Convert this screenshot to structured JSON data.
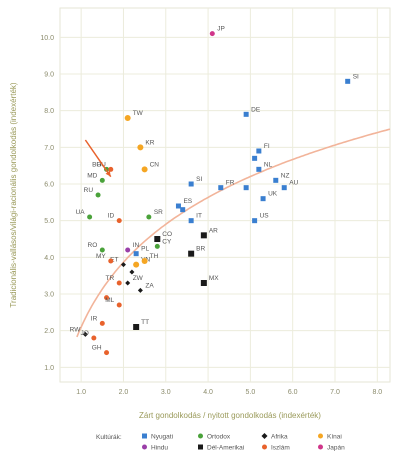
{
  "chart_data": {
    "type": "scatter",
    "xlabel": "Zárt gondolkodás / nyitott gondolkodás (indexérték)",
    "ylabel": "Tradicionális-vallásos/világi-racionális gondolkodás (indexérték)",
    "xlim": [
      0.5,
      8.3
    ],
    "ylim": [
      0.6,
      10.8
    ],
    "xticks": [
      "1.0",
      "2.0",
      "3.0",
      "4.0",
      "5.0",
      "6.0",
      "7.0",
      "8.0"
    ],
    "yticks": [
      "1.0",
      "2.0",
      "3.0",
      "4.0",
      "5.0",
      "6.0",
      "7.0",
      "8.0",
      "9.0",
      "10.0"
    ],
    "grid": true,
    "legend_position": "bottom",
    "legend_title": "Kultúrák:",
    "trendline": {
      "type": "logarithmic",
      "color": "#f2b49a"
    },
    "arrow": {
      "from": [
        1.1,
        7.2
      ],
      "to": [
        1.7,
        6.2
      ],
      "color": "#e8622c"
    },
    "series": [
      {
        "name": "Nyugati",
        "color": "#3a7fd0",
        "shape": "square",
        "size": 5,
        "points": [
          {
            "x": 7.3,
            "y": 8.8,
            "label": "SI"
          },
          {
            "x": 4.9,
            "y": 7.9,
            "label": "DE"
          },
          {
            "x": 5.2,
            "y": 6.9,
            "label": "FI"
          },
          {
            "x": 5.1,
            "y": 6.7,
            "label": ""
          },
          {
            "x": 5.2,
            "y": 6.4,
            "label": "NL"
          },
          {
            "x": 3.6,
            "y": 6.0,
            "label": "SI"
          },
          {
            "x": 4.3,
            "y": 5.9,
            "label": "FR"
          },
          {
            "x": 5.6,
            "y": 6.1,
            "label": "NZ"
          },
          {
            "x": 4.9,
            "y": 5.9,
            "label": ""
          },
          {
            "x": 5.3,
            "y": 5.6,
            "label": "UK"
          },
          {
            "x": 5.8,
            "y": 5.9,
            "label": "AU"
          },
          {
            "x": 3.3,
            "y": 5.4,
            "label": "ES"
          },
          {
            "x": 3.4,
            "y": 5.3,
            "label": ""
          },
          {
            "x": 3.6,
            "y": 5.0,
            "label": "IT"
          },
          {
            "x": 5.1,
            "y": 5.0,
            "label": "US"
          },
          {
            "x": 2.3,
            "y": 4.1,
            "label": "PL"
          }
        ]
      },
      {
        "name": "Hindu",
        "color": "#9a3fa8",
        "shape": "circle",
        "size": 5,
        "points": [
          {
            "x": 2.1,
            "y": 4.2,
            "label": "IN"
          }
        ]
      },
      {
        "name": "Ortodox",
        "color": "#4aa23a",
        "shape": "circle",
        "size": 5,
        "points": [
          {
            "x": 1.6,
            "y": 6.4,
            "label": "BG"
          },
          {
            "x": 1.5,
            "y": 6.1,
            "label": "MD"
          },
          {
            "x": 1.4,
            "y": 5.7,
            "label": "RU"
          },
          {
            "x": 1.2,
            "y": 5.1,
            "label": "UA"
          },
          {
            "x": 2.6,
            "y": 5.1,
            "label": "SR"
          },
          {
            "x": 1.5,
            "y": 4.2,
            "label": "RO"
          },
          {
            "x": 2.8,
            "y": 4.3,
            "label": "CY"
          }
        ]
      },
      {
        "name": "Dél-Amerikai",
        "color": "#1a1a1a",
        "shape": "square",
        "size": 6,
        "points": [
          {
            "x": 2.8,
            "y": 4.5,
            "label": "CO"
          },
          {
            "x": 3.9,
            "y": 4.6,
            "label": "AR"
          },
          {
            "x": 3.6,
            "y": 4.1,
            "label": "BR"
          },
          {
            "x": 3.9,
            "y": 3.3,
            "label": "MX"
          },
          {
            "x": 2.3,
            "y": 2.1,
            "label": "TT"
          }
        ]
      },
      {
        "name": "Afrika",
        "color": "#1a1a1a",
        "shape": "diamond",
        "size": 4,
        "points": [
          {
            "x": 2.0,
            "y": 3.8,
            "label": "ET"
          },
          {
            "x": 2.2,
            "y": 3.6,
            "label": ""
          },
          {
            "x": 2.1,
            "y": 3.3,
            "label": "ZW"
          },
          {
            "x": 2.4,
            "y": 3.1,
            "label": "ZA"
          },
          {
            "x": 1.1,
            "y": 1.9,
            "label": "RW"
          }
        ]
      },
      {
        "name": "Iszlám",
        "color": "#e8622c",
        "shape": "circle",
        "size": 5,
        "points": [
          {
            "x": 1.7,
            "y": 6.4,
            "label": "HU"
          },
          {
            "x": 1.9,
            "y": 5.0,
            "label": "ID"
          },
          {
            "x": 1.7,
            "y": 3.9,
            "label": "MY"
          },
          {
            "x": 1.9,
            "y": 3.3,
            "label": "TR"
          },
          {
            "x": 1.6,
            "y": 2.9,
            "label": ""
          },
          {
            "x": 1.9,
            "y": 2.7,
            "label": "ML"
          },
          {
            "x": 1.5,
            "y": 2.2,
            "label": "IR"
          },
          {
            "x": 1.3,
            "y": 1.8,
            "label": "JO"
          },
          {
            "x": 1.6,
            "y": 1.4,
            "label": "GH"
          }
        ]
      },
      {
        "name": "Kínai",
        "color": "#f5a623",
        "shape": "circle",
        "size": 6,
        "points": [
          {
            "x": 2.1,
            "y": 7.8,
            "label": "TW"
          },
          {
            "x": 2.4,
            "y": 7.0,
            "label": "KR"
          },
          {
            "x": 2.5,
            "y": 6.4,
            "label": "CN"
          },
          {
            "x": 2.3,
            "y": 3.8,
            "label": "VN"
          },
          {
            "x": 2.5,
            "y": 3.9,
            "label": "TH"
          }
        ]
      },
      {
        "name": "Japán",
        "color": "#d0368a",
        "shape": "circle",
        "size": 5,
        "points": [
          {
            "x": 4.1,
            "y": 10.1,
            "label": "JP"
          }
        ]
      }
    ]
  }
}
